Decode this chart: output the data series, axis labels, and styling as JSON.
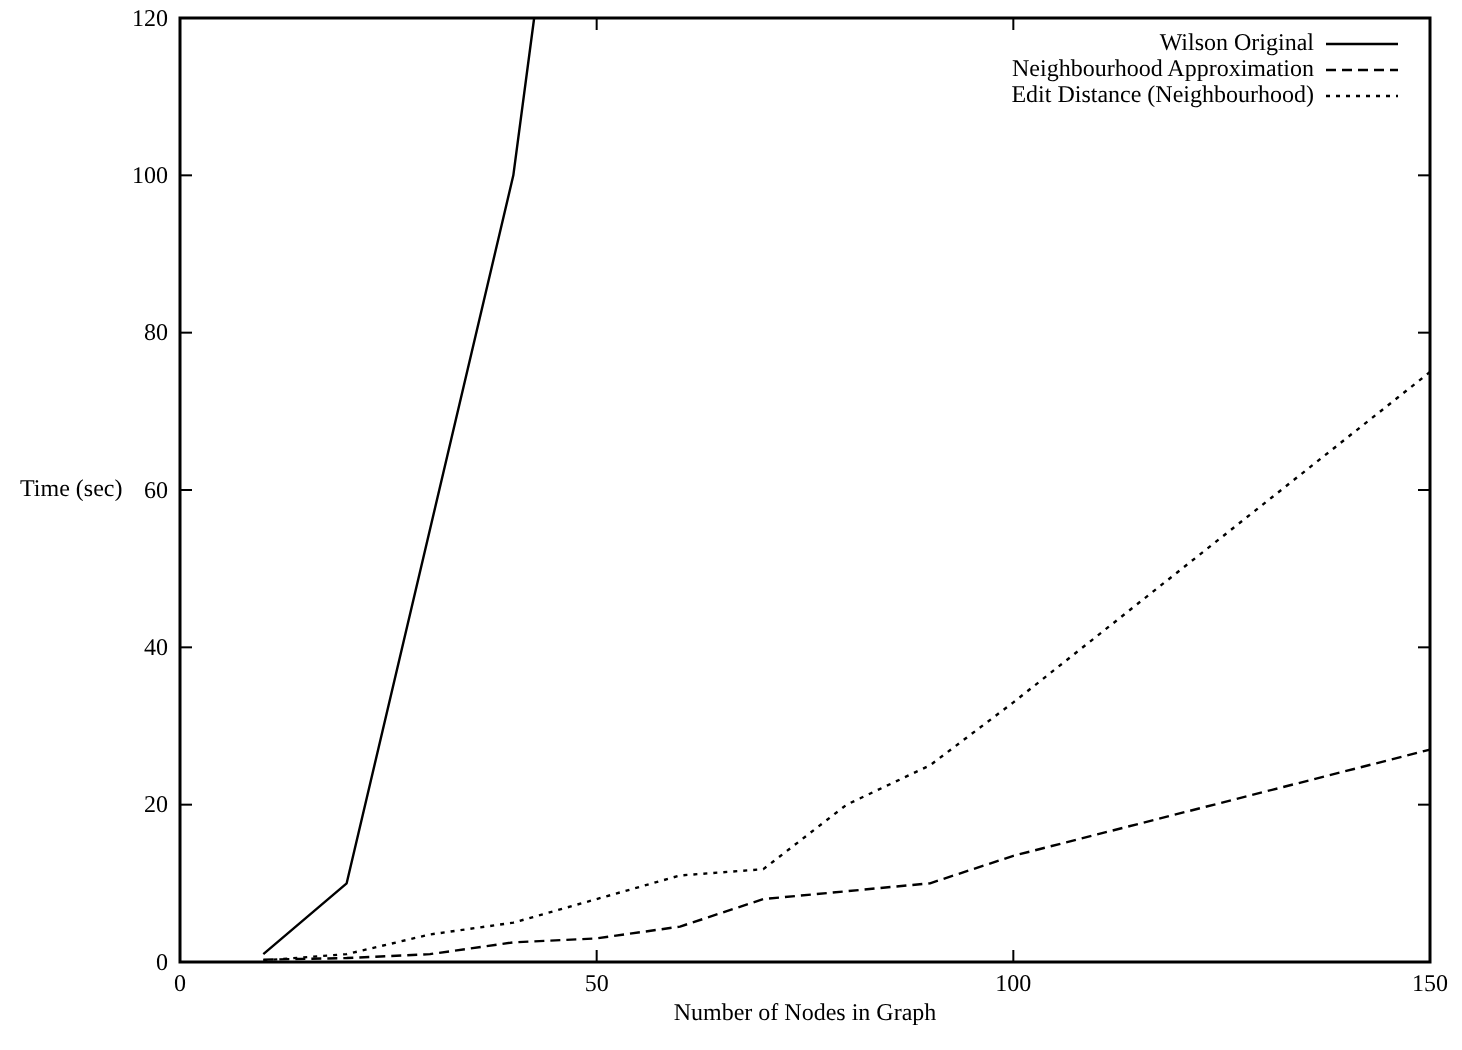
{
  "chart_data": {
    "type": "line",
    "xlabel": "Number of Nodes in Graph",
    "ylabel": "Time (sec)",
    "xlim": [
      0,
      150
    ],
    "xticks": [
      0,
      50,
      100,
      150
    ],
    "ylim": [
      0,
      120
    ],
    "yticks": [
      0,
      20,
      40,
      60,
      80,
      100,
      120
    ],
    "legend": "top right",
    "grid": false,
    "series": [
      {
        "name": "Wilson Original",
        "color": "#000000",
        "line_style": "solid",
        "x": [
          10,
          20,
          40,
          42.5
        ],
        "values": [
          1,
          10,
          100,
          120
        ]
      },
      {
        "name": "Neighbourhood Approximation",
        "color": "#000000",
        "line_style": "dashed",
        "x": [
          10,
          20,
          30,
          40,
          50,
          60,
          70,
          80,
          90,
          100,
          150
        ],
        "values": [
          0.3,
          0.5,
          1,
          2.5,
          3,
          4.5,
          8,
          9,
          10,
          13.5,
          27
        ]
      },
      {
        "name": "Edit Distance (Neighbourhood)",
        "color": "#000000",
        "line_style": "dotted",
        "x": [
          10,
          20,
          30,
          40,
          50,
          60,
          70,
          80,
          90,
          100,
          150
        ],
        "values": [
          0.2,
          1,
          3.5,
          5,
          8,
          11,
          11.8,
          20,
          25,
          33,
          75
        ]
      }
    ]
  }
}
